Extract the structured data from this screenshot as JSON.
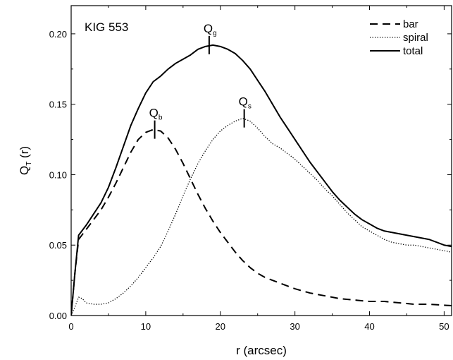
{
  "chart_data": {
    "type": "line",
    "panel_label": "KIG 553",
    "xlabel": "r (arcsec)",
    "ylabel": {
      "main": "Q",
      "sub": "T",
      "rest": " (r)"
    },
    "xlim": [
      0,
      51
    ],
    "ylim": [
      0,
      0.22
    ],
    "x_ticks": [
      0,
      10,
      20,
      30,
      40,
      50
    ],
    "x_tick_labels": [
      "0",
      "10",
      "20",
      "30",
      "40",
      "50"
    ],
    "y_ticks": [
      0.0,
      0.05,
      0.1,
      0.15,
      0.2
    ],
    "y_tick_labels": [
      "0.00",
      "0.05",
      "0.10",
      "0.15",
      "0.20"
    ],
    "grid": false,
    "legend_position": "top-right",
    "series": [
      {
        "name": "bar",
        "style": "dashed",
        "color": "#000000",
        "points": [
          [
            0,
            0
          ],
          [
            0.5,
            0.03
          ],
          [
            1,
            0.054
          ],
          [
            2,
            0.061
          ],
          [
            3,
            0.068
          ],
          [
            4,
            0.075
          ],
          [
            5,
            0.084
          ],
          [
            6,
            0.094
          ],
          [
            7,
            0.105
          ],
          [
            8,
            0.116
          ],
          [
            9,
            0.125
          ],
          [
            10,
            0.13
          ],
          [
            11,
            0.132
          ],
          [
            12,
            0.131
          ],
          [
            13,
            0.126
          ],
          [
            14,
            0.118
          ],
          [
            15,
            0.108
          ],
          [
            16,
            0.097
          ],
          [
            17,
            0.086
          ],
          [
            18,
            0.076
          ],
          [
            19,
            0.067
          ],
          [
            20,
            0.059
          ],
          [
            21,
            0.052
          ],
          [
            22,
            0.045
          ],
          [
            23,
            0.039
          ],
          [
            24,
            0.034
          ],
          [
            25,
            0.03
          ],
          [
            26,
            0.027
          ],
          [
            28,
            0.023
          ],
          [
            30,
            0.019
          ],
          [
            32,
            0.016
          ],
          [
            34,
            0.014
          ],
          [
            36,
            0.012
          ],
          [
            38,
            0.011
          ],
          [
            40,
            0.01
          ],
          [
            42,
            0.01
          ],
          [
            44,
            0.009
          ],
          [
            46,
            0.008
          ],
          [
            48,
            0.008
          ],
          [
            51,
            0.007
          ]
        ]
      },
      {
        "name": "spiral",
        "style": "dotted",
        "color": "#000000",
        "points": [
          [
            0,
            0
          ],
          [
            0.5,
            0.006
          ],
          [
            1,
            0.013
          ],
          [
            1.5,
            0.012
          ],
          [
            2,
            0.009
          ],
          [
            3,
            0.008
          ],
          [
            4,
            0.008
          ],
          [
            5,
            0.009
          ],
          [
            6,
            0.012
          ],
          [
            7,
            0.016
          ],
          [
            8,
            0.021
          ],
          [
            9,
            0.027
          ],
          [
            10,
            0.034
          ],
          [
            11,
            0.041
          ],
          [
            12,
            0.049
          ],
          [
            13,
            0.06
          ],
          [
            14,
            0.072
          ],
          [
            15,
            0.085
          ],
          [
            16,
            0.097
          ],
          [
            17,
            0.108
          ],
          [
            18,
            0.117
          ],
          [
            19,
            0.125
          ],
          [
            20,
            0.131
          ],
          [
            21,
            0.135
          ],
          [
            22,
            0.138
          ],
          [
            23,
            0.14
          ],
          [
            24,
            0.138
          ],
          [
            25,
            0.133
          ],
          [
            26,
            0.127
          ],
          [
            27,
            0.122
          ],
          [
            28,
            0.119
          ],
          [
            29,
            0.115
          ],
          [
            30,
            0.111
          ],
          [
            31,
            0.106
          ],
          [
            32,
            0.101
          ],
          [
            33,
            0.096
          ],
          [
            34,
            0.09
          ],
          [
            35,
            0.085
          ],
          [
            36,
            0.079
          ],
          [
            37,
            0.073
          ],
          [
            38,
            0.068
          ],
          [
            39,
            0.063
          ],
          [
            40,
            0.06
          ],
          [
            41,
            0.057
          ],
          [
            42,
            0.054
          ],
          [
            43,
            0.052
          ],
          [
            44,
            0.051
          ],
          [
            45,
            0.05
          ],
          [
            46,
            0.05
          ],
          [
            47,
            0.049
          ],
          [
            48,
            0.048
          ],
          [
            49,
            0.047
          ],
          [
            50,
            0.046
          ],
          [
            51,
            0.045
          ]
        ]
      },
      {
        "name": "total",
        "style": "solid",
        "color": "#000000",
        "points": [
          [
            0,
            0
          ],
          [
            0.5,
            0.03
          ],
          [
            1,
            0.057
          ],
          [
            2,
            0.064
          ],
          [
            3,
            0.072
          ],
          [
            4,
            0.08
          ],
          [
            5,
            0.091
          ],
          [
            6,
            0.105
          ],
          [
            7,
            0.12
          ],
          [
            8,
            0.135
          ],
          [
            9,
            0.147
          ],
          [
            10,
            0.158
          ],
          [
            11,
            0.166
          ],
          [
            12,
            0.17
          ],
          [
            13,
            0.175
          ],
          [
            14,
            0.179
          ],
          [
            15,
            0.182
          ],
          [
            16,
            0.185
          ],
          [
            17,
            0.189
          ],
          [
            18,
            0.191
          ],
          [
            19,
            0.192
          ],
          [
            20,
            0.191
          ],
          [
            21,
            0.189
          ],
          [
            22,
            0.186
          ],
          [
            23,
            0.181
          ],
          [
            24,
            0.175
          ],
          [
            25,
            0.167
          ],
          [
            26,
            0.159
          ],
          [
            27,
            0.15
          ],
          [
            28,
            0.141
          ],
          [
            29,
            0.133
          ],
          [
            30,
            0.125
          ],
          [
            31,
            0.117
          ],
          [
            32,
            0.109
          ],
          [
            33,
            0.102
          ],
          [
            34,
            0.095
          ],
          [
            35,
            0.088
          ],
          [
            36,
            0.082
          ],
          [
            37,
            0.077
          ],
          [
            38,
            0.072
          ],
          [
            39,
            0.068
          ],
          [
            40,
            0.065
          ],
          [
            41,
            0.062
          ],
          [
            42,
            0.06
          ],
          [
            43,
            0.059
          ],
          [
            44,
            0.058
          ],
          [
            45,
            0.057
          ],
          [
            46,
            0.056
          ],
          [
            47,
            0.055
          ],
          [
            48,
            0.054
          ],
          [
            49,
            0.052
          ],
          [
            50,
            0.05
          ],
          [
            51,
            0.049
          ]
        ]
      }
    ],
    "annotations": [
      {
        "text": "Q",
        "sub": "g",
        "x": 18.5,
        "y": 0.192
      },
      {
        "text": "Q",
        "sub": "b",
        "x": 11.2,
        "y": 0.132
      },
      {
        "text": "Q",
        "sub": "s",
        "x": 23.2,
        "y": 0.14
      }
    ]
  }
}
